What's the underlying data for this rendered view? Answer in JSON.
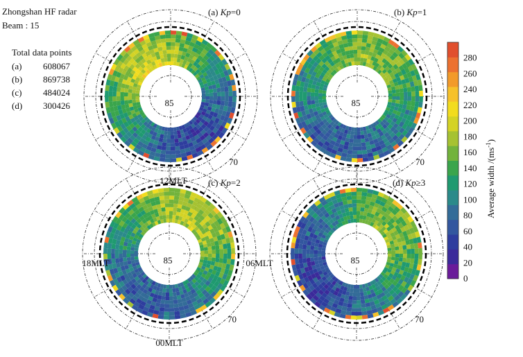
{
  "header": {
    "station": "Zhongshan   HF   radar",
    "beam": "Beam : 15",
    "total_title": "Total  data points",
    "totals": [
      {
        "key": "(a)",
        "value": "608067"
      },
      {
        "key": "(b)",
        "value": "869738"
      },
      {
        "key": "(c)",
        "value": "484024"
      },
      {
        "key": "(d)",
        "value": "300426"
      }
    ]
  },
  "panels": [
    {
      "tag": "(a)",
      "kp_var": "Kp",
      "kp_rel": "=0"
    },
    {
      "tag": "(b)",
      "kp_var": "Kp",
      "kp_rel": "=1"
    },
    {
      "tag": "(c)",
      "kp_var": "Kp",
      "kp_rel": "=2"
    },
    {
      "tag": "(d)",
      "kp_var": "Kp",
      "kp_rel": "≥3"
    }
  ],
  "axes": {
    "inner_lat_label": "85",
    "outer_lat_label": "70",
    "mlt_labels": {
      "top": "12MLT",
      "left": "18MLT",
      "right": "06MLT",
      "bottom": "00MLT"
    }
  },
  "colorbar": {
    "label_pre": "Average   width /(m",
    "label_sup": "-1",
    "label_post": ")",
    "label_s": "s",
    "ticks": [
      "0",
      "20",
      "40",
      "60",
      "80",
      "100",
      "120",
      "140",
      "160",
      "180",
      "200",
      "220",
      "240",
      "260",
      "280"
    ],
    "colors": [
      "#6a1b9a",
      "#3b2a9a",
      "#2e3d9e",
      "#33579f",
      "#336c98",
      "#2b8a8a",
      "#1f9a70",
      "#3aa54c",
      "#72b33c",
      "#a6c232",
      "#d4d325",
      "#f2dc1e",
      "#f6c12a",
      "#f29a2a",
      "#ec7130",
      "#e14f2e"
    ],
    "range": [
      0,
      300
    ]
  },
  "chart_data": [
    {
      "type": "heatmap",
      "panel": "(a)",
      "condition": "Kp=0",
      "total_points": 608067,
      "r_labels": [
        85,
        70
      ],
      "theta_labels": [
        "12MLT",
        "06MLT",
        "00MLT",
        "18MLT"
      ],
      "value_range": [
        0,
        300
      ],
      "pattern": "yellow-orange (160-240) on dayside/dusk, blue-green (60-100) on nightside"
    },
    {
      "type": "heatmap",
      "panel": "(b)",
      "condition": "Kp=1",
      "total_points": 869738,
      "r_labels": [
        85,
        70
      ],
      "theta_labels": [
        "12MLT",
        "06MLT",
        "00MLT",
        "18MLT"
      ],
      "value_range": [
        0,
        300
      ],
      "pattern": "green-yellow (120-180) on dayside, blue (60-90) near midnight"
    },
    {
      "type": "heatmap",
      "panel": "(c)",
      "condition": "Kp=2",
      "total_points": 484024,
      "r_labels": [
        85,
        70
      ],
      "theta_labels": [
        "12MLT",
        "06MLT",
        "00MLT",
        "18MLT"
      ],
      "value_range": [
        0,
        300
      ],
      "pattern": "yellow (180-200) dayside-dawn, green-blue (80-120) nightside"
    },
    {
      "type": "heatmap",
      "panel": "(d)",
      "condition": "Kp≥3",
      "total_points": 300426,
      "r_labels": [
        85,
        70
      ],
      "theta_labels": [
        "12MLT",
        "06MLT",
        "00MLT",
        "18MLT"
      ],
      "value_range": [
        0,
        300
      ],
      "pattern": "green-yellow (120-180) dawn side, blue (40-80) dusk-night"
    }
  ]
}
